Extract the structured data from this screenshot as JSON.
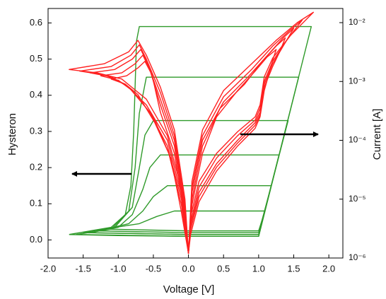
{
  "chart_data": {
    "type": "line",
    "xlabel": "Voltage [V]",
    "ylabel": "Hysteron",
    "y2label": "Current [A]",
    "xlim": [
      -2.0,
      2.2
    ],
    "ylim": [
      -0.05,
      0.64
    ],
    "y2lim": [
      1e-06,
      0.0174
    ],
    "y2scale": "log",
    "xticks": [
      {
        "value": -2.0,
        "label": "-2.0"
      },
      -1.5,
      {
        "value": -1.0,
        "label": "-1.0"
      },
      -0.5,
      {
        "value": 0.0,
        "label": "0.0"
      },
      0.5,
      {
        "value": 1.0,
        "label": "1.0"
      },
      1.5,
      {
        "value": 2.0,
        "label": "2.0"
      }
    ],
    "yticks": [
      {
        "value": 0.0,
        "label": "0.0"
      },
      0.1,
      0.2,
      0.3,
      0.4,
      0.5,
      0.6
    ],
    "y2ticks": [
      {
        "value": 1e-06,
        "label": "10⁻⁶"
      },
      {
        "value": 1e-05,
        "label": "10⁻⁵"
      },
      {
        "value": 0.0001,
        "label": "10⁻⁴"
      },
      {
        "value": 0.001,
        "label": "10⁻³"
      },
      {
        "value": 0.01,
        "label": "10⁻²"
      }
    ],
    "series": [
      {
        "color": "#2f9a2a",
        "x": [
          -1.7,
          -1.0,
          0,
          1.0,
          1.75,
          -0.7,
          -0.74,
          -0.78,
          -0.82,
          -0.9,
          -1.1,
          -1.7
        ],
        "values": [
          0.015,
          0.012,
          0.01,
          0.01,
          0.59,
          0.59,
          0.55,
          0.3,
          0.15,
          0.07,
          0.035,
          0.015
        ]
      },
      {
        "color": "#2f9a2a",
        "x": [
          -1.6,
          0,
          1.0,
          1.57,
          -0.6,
          -0.7,
          -0.76,
          -0.85,
          -1.1,
          -1.6
        ],
        "values": [
          0.015,
          0.01,
          0.01,
          0.45,
          0.45,
          0.35,
          0.2,
          0.08,
          0.03,
          0.015
        ]
      },
      {
        "color": "#2f9a2a",
        "x": [
          -1.5,
          0,
          1.0,
          1.42,
          -0.5,
          -0.62,
          -0.7,
          -0.8,
          -1.05,
          -1.5
        ],
        "values": [
          0.02,
          0.015,
          0.015,
          0.33,
          0.33,
          0.29,
          0.2,
          0.09,
          0.035,
          0.02
        ]
      },
      {
        "color": "#2f9a2a",
        "x": [
          -1.4,
          0,
          1.0,
          1.29,
          -0.4,
          -0.55,
          -0.65,
          -0.8,
          -1.0,
          -1.4
        ],
        "values": [
          0.02,
          0.015,
          0.015,
          0.235,
          0.235,
          0.2,
          0.14,
          0.07,
          0.035,
          0.02
        ]
      },
      {
        "color": "#2f9a2a",
        "x": [
          -1.3,
          0,
          1.0,
          1.18,
          -0.3,
          -0.5,
          -0.65,
          -0.85,
          -1.3
        ],
        "values": [
          0.025,
          0.02,
          0.02,
          0.15,
          0.15,
          0.12,
          0.08,
          0.045,
          0.025
        ]
      },
      {
        "color": "#2f9a2a",
        "x": [
          -1.2,
          0,
          1.0,
          1.09,
          -0.2,
          -0.45,
          -0.7,
          -1.2
        ],
        "values": [
          0.03,
          0.025,
          0.025,
          0.08,
          0.08,
          0.065,
          0.045,
          0.03
        ]
      },
      {
        "color": "#ff2020",
        "axis": "y2",
        "x": [
          0,
          0.03,
          0.15,
          0.4,
          0.7,
          0.95,
          1.02,
          1.08,
          1.2,
          1.45,
          1.78,
          1.55,
          1.25,
          0.9,
          0.5,
          0.2,
          0.05,
          0,
          -0.05,
          -0.2,
          -0.4,
          -0.6,
          -0.72,
          -0.85,
          -1.2,
          -1.7,
          -1.3,
          -0.95,
          -0.6,
          -0.3,
          -0.1,
          0
        ],
        "values": [
          1.2e-06,
          5e-06,
          2e-05,
          6e-05,
          0.00014,
          0.00025,
          0.0004,
          0.0012,
          0.0025,
          0.006,
          0.015,
          0.01,
          0.005,
          0.002,
          0.0007,
          0.00015,
          2e-05,
          1.2e-06,
          1e-05,
          0.00015,
          0.0008,
          0.0028,
          0.005,
          0.0032,
          0.002,
          0.0016,
          0.0014,
          0.0011,
          0.0005,
          0.00012,
          1.5e-05,
          1.2e-06
        ]
      },
      {
        "color": "#ff2020",
        "axis": "y2",
        "x": [
          0,
          0.03,
          0.15,
          0.4,
          0.7,
          0.95,
          1.02,
          1.08,
          1.2,
          1.4,
          1.62,
          1.45,
          1.2,
          0.9,
          0.5,
          0.2,
          0.05,
          0,
          -0.05,
          -0.2,
          -0.4,
          -0.6,
          -0.7,
          -0.82,
          -1.1,
          -1.55,
          -1.2,
          -0.9,
          -0.6,
          -0.3,
          -0.1,
          0
        ],
        "values": [
          1.2e-06,
          4e-06,
          1.6e-05,
          5e-05,
          0.00012,
          0.00022,
          0.00035,
          0.001,
          0.0022,
          0.005,
          0.011,
          0.0075,
          0.004,
          0.0016,
          0.00055,
          0.00012,
          1.6e-05,
          1.2e-06,
          8e-06,
          0.00012,
          0.00065,
          0.0024,
          0.0042,
          0.0028,
          0.0018,
          0.0015,
          0.0013,
          0.0009,
          0.0004,
          0.0001,
          1.2e-05,
          1.2e-06
        ]
      },
      {
        "color": "#ff2020",
        "axis": "y2",
        "x": [
          0,
          0.03,
          0.15,
          0.4,
          0.7,
          0.95,
          1.02,
          1.08,
          1.2,
          1.35,
          1.5,
          1.35,
          1.15,
          0.85,
          0.5,
          0.2,
          0.05,
          0,
          -0.05,
          -0.2,
          -0.4,
          -0.58,
          -0.68,
          -0.8,
          -1.05,
          -1.4,
          -1.1,
          -0.85,
          -0.55,
          -0.3,
          -0.1,
          0
        ],
        "values": [
          1.2e-06,
          3.5e-06,
          1.3e-05,
          4e-05,
          0.0001,
          0.0002,
          0.0003,
          0.0009,
          0.002,
          0.004,
          0.008,
          0.0055,
          0.003,
          0.0012,
          0.00045,
          0.0001,
          1.3e-05,
          1.2e-06,
          7e-06,
          0.0001,
          0.0005,
          0.002,
          0.0035,
          0.0024,
          0.0016,
          0.0014,
          0.0012,
          0.0008,
          0.0003,
          8e-05,
          1e-05,
          1.2e-06
        ]
      },
      {
        "color": "#ff2020",
        "axis": "y2",
        "x": [
          0,
          0.03,
          0.15,
          0.4,
          0.7,
          0.95,
          1.02,
          1.08,
          1.2,
          1.3,
          1.38,
          1.25,
          1.05,
          0.8,
          0.45,
          0.2,
          0.05,
          0,
          -0.05,
          -0.2,
          -0.4,
          -0.55,
          -0.65,
          -0.76,
          -0.95,
          -1.25,
          -1.0,
          -0.8,
          -0.5,
          -0.28,
          -0.1,
          0
        ],
        "values": [
          1.2e-06,
          3e-06,
          1.1e-05,
          3.5e-05,
          9e-05,
          0.00018,
          0.00027,
          0.0008,
          0.0018,
          0.0032,
          0.0055,
          0.004,
          0.0022,
          0.0009,
          0.00035,
          8e-05,
          1e-05,
          1.2e-06,
          6e-06,
          8e-05,
          0.0004,
          0.0016,
          0.0028,
          0.002,
          0.0014,
          0.00125,
          0.00105,
          0.0007,
          0.00025,
          6e-05,
          8e-06,
          1.2e-06
        ]
      },
      {
        "color": "#ff2020",
        "axis": "y2",
        "x": [
          0,
          0.03,
          0.15,
          0.4,
          0.7,
          0.95,
          1.02,
          1.08,
          1.15,
          1.2,
          1.25,
          1.12,
          0.95,
          0.7,
          0.4,
          0.2,
          0.05,
          0,
          -0.05,
          -0.2,
          -0.4,
          -0.52,
          -0.62,
          -0.72,
          -0.88,
          -1.1,
          -0.9,
          -0.72,
          -0.48,
          -0.25,
          -0.1,
          0
        ],
        "values": [
          1.2e-06,
          2.5e-06,
          9e-06,
          3e-05,
          8e-05,
          0.00016,
          0.00025,
          0.0007,
          0.0014,
          0.0023,
          0.0035,
          0.0026,
          0.0015,
          0.0007,
          0.00025,
          6e-05,
          8e-06,
          1.2e-06,
          5e-06,
          6e-05,
          0.0003,
          0.0013,
          0.0022,
          0.0017,
          0.00125,
          0.0011,
          0.0009,
          0.0006,
          0.0002,
          5e-05,
          6e-06,
          1.2e-06
        ]
      }
    ]
  }
}
